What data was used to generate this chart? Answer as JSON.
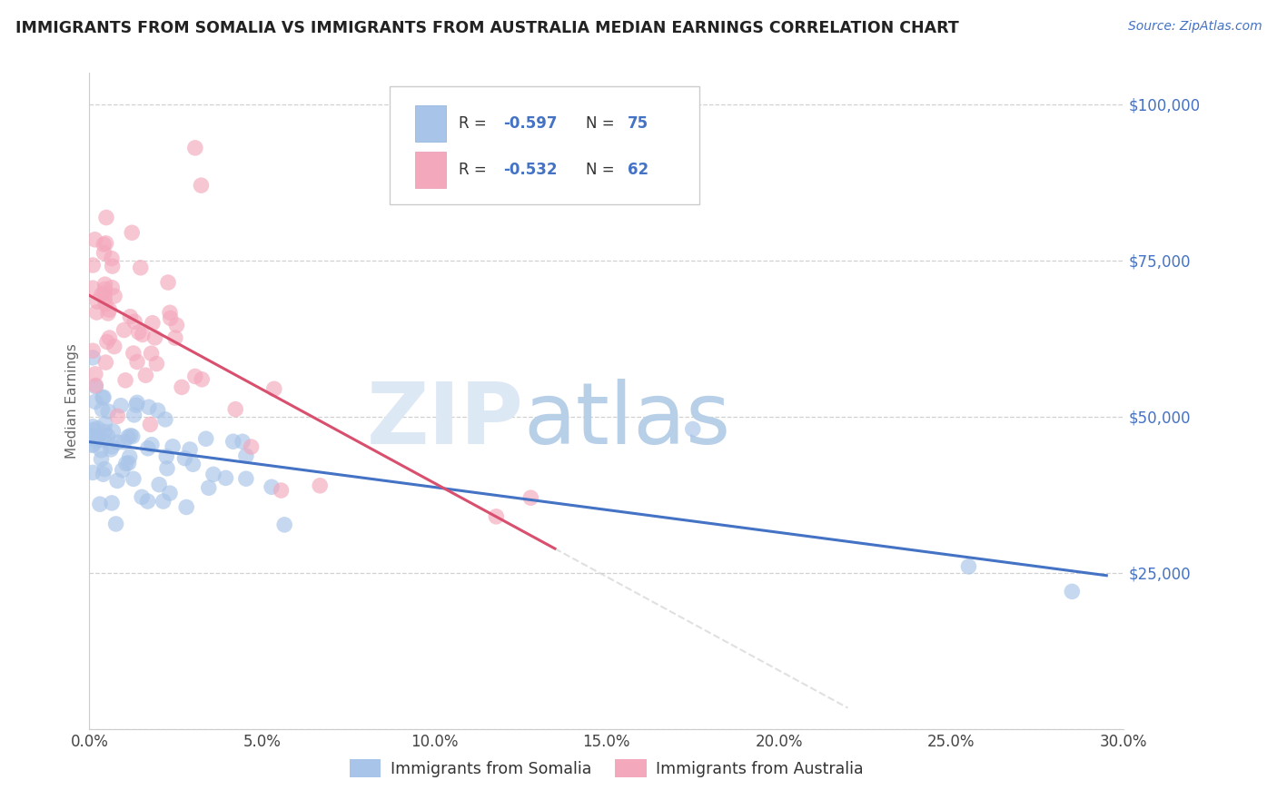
{
  "title": "IMMIGRANTS FROM SOMALIA VS IMMIGRANTS FROM AUSTRALIA MEDIAN EARNINGS CORRELATION CHART",
  "source": "Source: ZipAtlas.com",
  "ylabel": "Median Earnings",
  "xlim": [
    0.0,
    0.3
  ],
  "ylim": [
    0,
    105000
  ],
  "yticks": [
    0,
    25000,
    50000,
    75000,
    100000
  ],
  "xticks": [
    0.0,
    0.05,
    0.1,
    0.15,
    0.2,
    0.25,
    0.3
  ],
  "xtick_labels": [
    "0.0%",
    "5.0%",
    "10.0%",
    "15.0%",
    "20.0%",
    "25.0%",
    "30.0%"
  ],
  "ytick_labels": [
    "",
    "$25,000",
    "$50,000",
    "$75,000",
    "$100,000"
  ],
  "legend_labels": [
    "Immigrants from Somalia",
    "Immigrants from Australia"
  ],
  "R_somalia": -0.597,
  "N_somalia": 75,
  "R_australia": -0.532,
  "N_australia": 62,
  "color_somalia": "#a8c4e8",
  "color_australia": "#f4a8bc",
  "line_color_somalia": "#4472c4",
  "line_color_australia": "#d94f6e",
  "watermark_zip": "ZIP",
  "watermark_atlas": "atlas",
  "watermark_color_zip": "#dde8f5",
  "watermark_color_atlas": "#b8cfe8",
  "background_color": "#ffffff",
  "title_color": "#222222",
  "axis_label_color": "#666666",
  "tick_label_color_y": "#4472c4",
  "tick_label_color_x": "#444444",
  "source_color": "#4472c4",
  "legend_text_color": "#333333",
  "legend_value_color": "#4472c4",
  "somalia_intercept": 47000,
  "somalia_slope": -120000,
  "australia_intercept": 70000,
  "australia_slope": -450000,
  "somalia_line_x_end": 0.295,
  "australia_line_x_end": 0.135
}
